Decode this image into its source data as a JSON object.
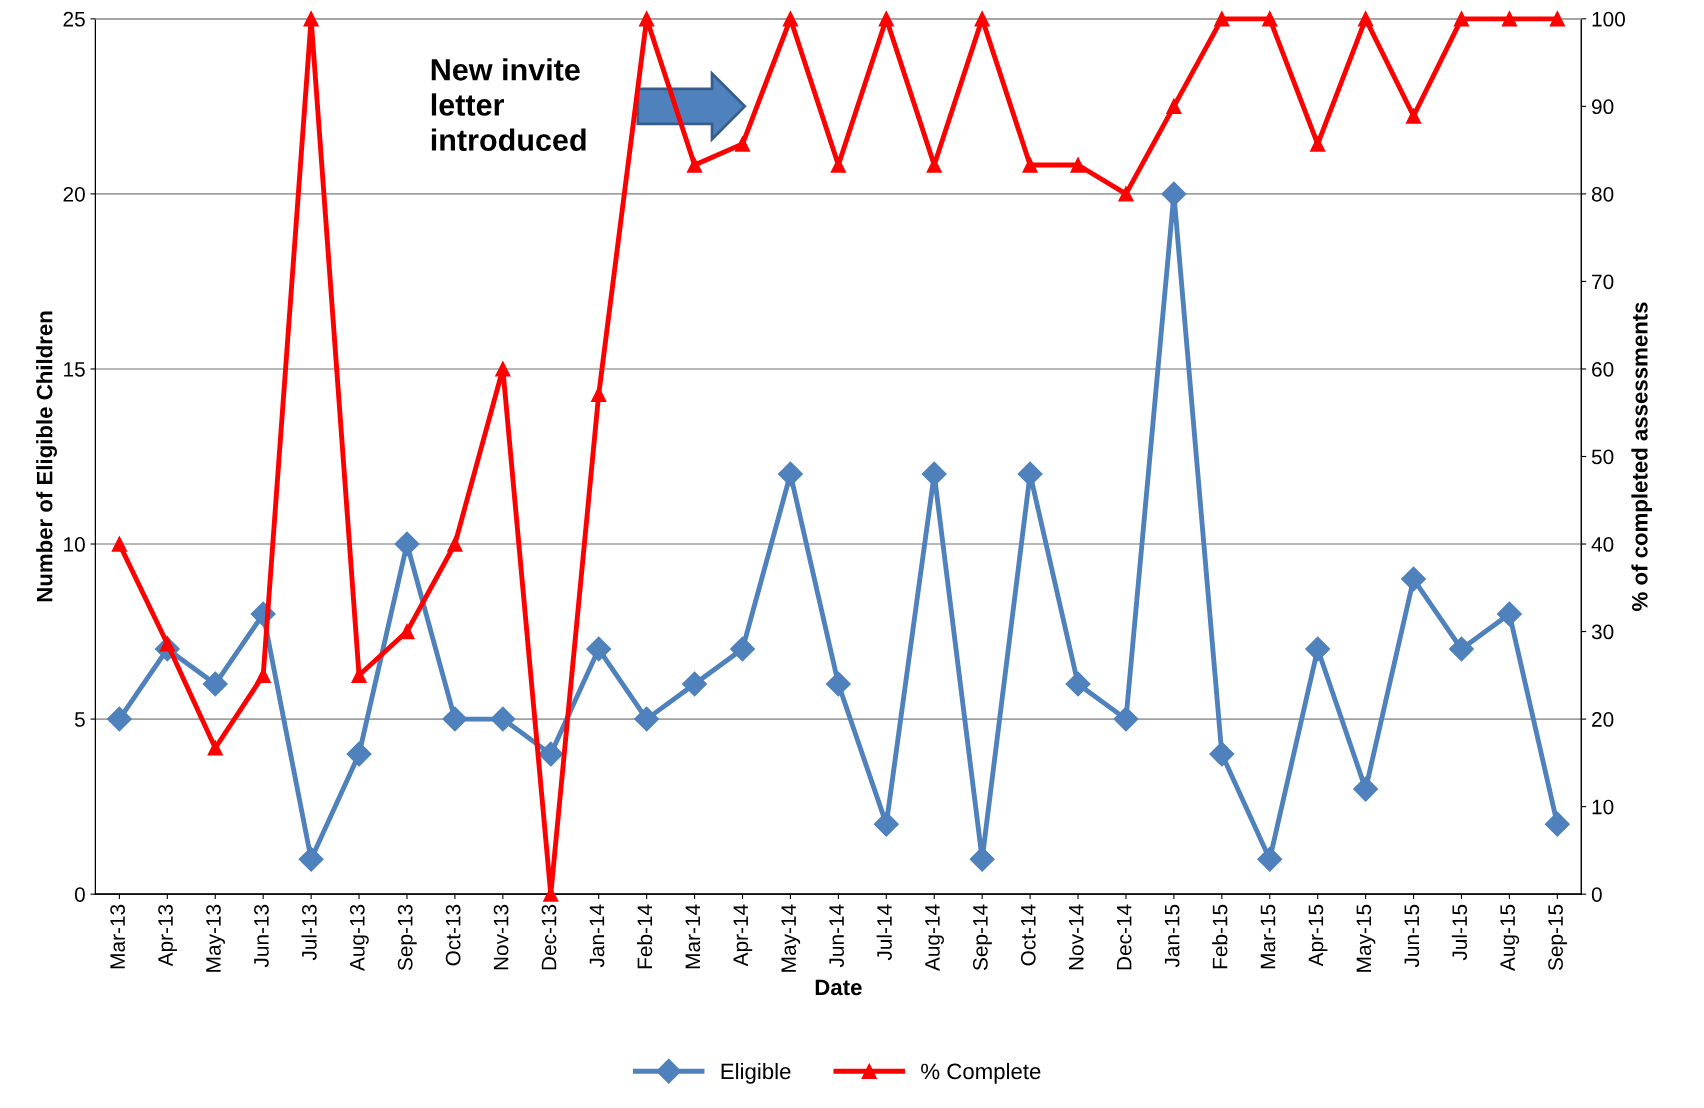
{
  "chart_data": {
    "type": "line",
    "xlabel": "Date",
    "ylabel": "Number of Eligible Children",
    "y2label": "% of completed assessments",
    "categories": [
      "Mar-13",
      "Apr-13",
      "May-13",
      "Jun-13",
      "Jul-13",
      "Aug-13",
      "Sep-13",
      "Oct-13",
      "Nov-13",
      "Dec-13",
      "Jan-14",
      "Feb-14",
      "Mar-14",
      "Apr-14",
      "May-14",
      "Jun-14",
      "Jul-14",
      "Aug-14",
      "Sep-14",
      "Oct-14",
      "Nov-14",
      "Dec-14",
      "Jan-15",
      "Feb-15",
      "Mar-15",
      "Apr-15",
      "May-15",
      "Jun-15",
      "Jul-15",
      "Aug-15",
      "Sep-15"
    ],
    "series": [
      {
        "name": "Eligible",
        "color": "#4f81bd",
        "marker": "diamond",
        "values": [
          5,
          7,
          6,
          8,
          1,
          4,
          10,
          5,
          5,
          4,
          7,
          5,
          6,
          7,
          12,
          6,
          2,
          12,
          1,
          12,
          6,
          5,
          20,
          4,
          1,
          7,
          3,
          9,
          7,
          8,
          2
        ]
      },
      {
        "name": "% Complete",
        "color": "#ff0000",
        "marker": "triangle",
        "axis": "y2",
        "values": [
          40,
          28.6,
          16.7,
          25,
          100,
          25,
          30,
          40,
          60,
          0,
          57.1,
          100,
          83.3,
          85.7,
          100,
          83.3,
          100,
          83.3,
          100,
          83.3,
          83.3,
          80,
          90,
          100,
          100,
          85.7,
          100,
          88.9,
          100,
          100,
          100
        ]
      }
    ],
    "ylim": [
      0,
      25
    ],
    "yticks": [
      0,
      5,
      10,
      15,
      20,
      25
    ],
    "y2lim": [
      0,
      100
    ],
    "y2ticks": [
      0,
      10,
      20,
      30,
      40,
      50,
      60,
      70,
      80,
      90,
      100
    ],
    "grid": "y",
    "legend": "bottom",
    "line_style": "solid",
    "annotations": [
      "New invite\nletter\nintroduced"
    ]
  }
}
